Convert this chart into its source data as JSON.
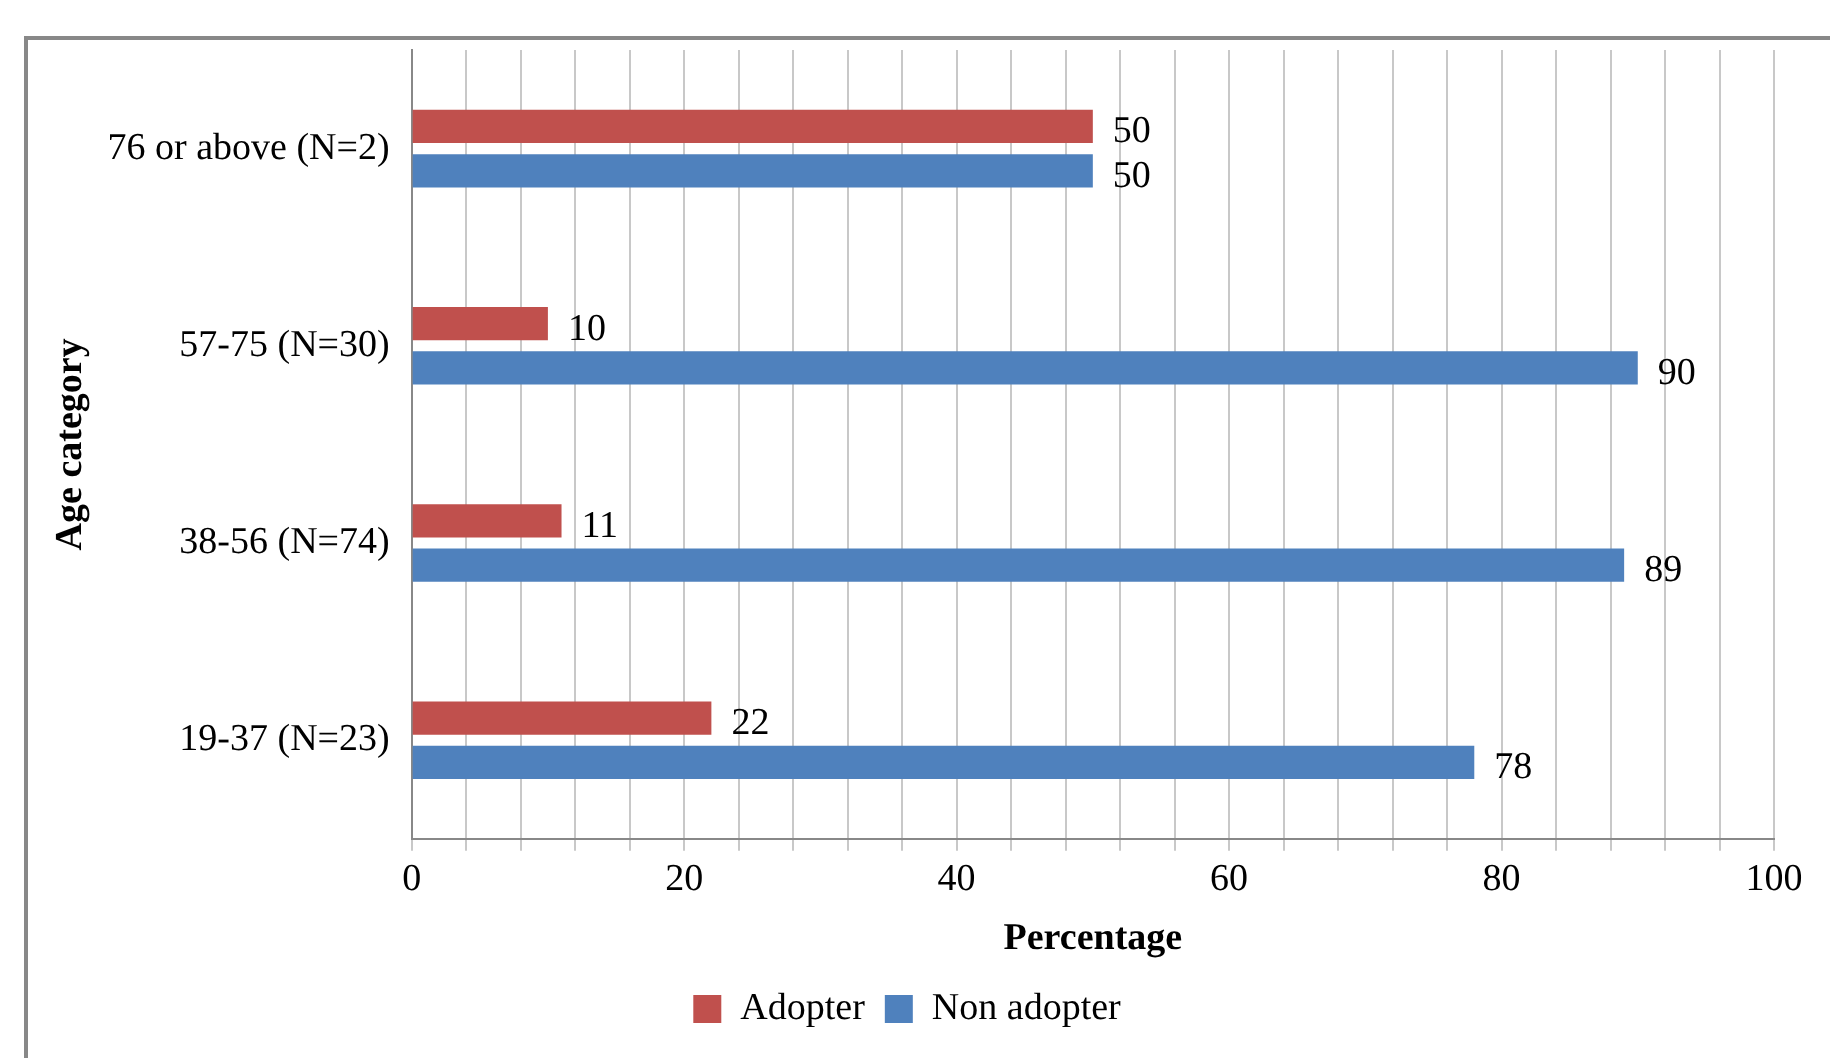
{
  "chart_data": {
    "type": "bar",
    "orientation": "horizontal",
    "ylabel": "Age category",
    "xlabel": "Percentage",
    "categories": [
      "76 or above (N=2)",
      "57-75 (N=30)",
      "38-56 (N=74)",
      "19-37 (N=23)"
    ],
    "series": [
      {
        "name": "Adopter",
        "color": "#c0504d",
        "values": [
          50,
          10,
          11,
          22
        ]
      },
      {
        "name": "Non adopter",
        "color": "#4f81bd",
        "values": [
          50,
          90,
          89,
          78
        ]
      }
    ],
    "xlim": [
      0,
      100
    ],
    "xticks": [
      0,
      {
        "value": 4,
        "label": null
      },
      {
        "value": 8,
        "label": null
      },
      {
        "value": 12,
        "label": null
      },
      {
        "value": 16,
        "label": null
      },
      20,
      {
        "value": 24,
        "label": null
      },
      {
        "value": 28,
        "label": null
      },
      {
        "value": 32,
        "label": null
      },
      {
        "value": 36,
        "label": null
      },
      40,
      {
        "value": 44,
        "label": null
      },
      {
        "value": 48,
        "label": null
      },
      {
        "value": 52,
        "label": null
      },
      {
        "value": 56,
        "label": null
      },
      60,
      {
        "value": 64,
        "label": null
      },
      {
        "value": 68,
        "label": null
      },
      {
        "value": 72,
        "label": null
      },
      {
        "value": 76,
        "label": null
      },
      80,
      {
        "value": 84,
        "label": null
      },
      {
        "value": 88,
        "label": null
      },
      {
        "value": 92,
        "label": null
      },
      {
        "value": 96,
        "label": null
      },
      100
    ],
    "grid": "x",
    "legend": "bottom",
    "data_labels": true
  }
}
